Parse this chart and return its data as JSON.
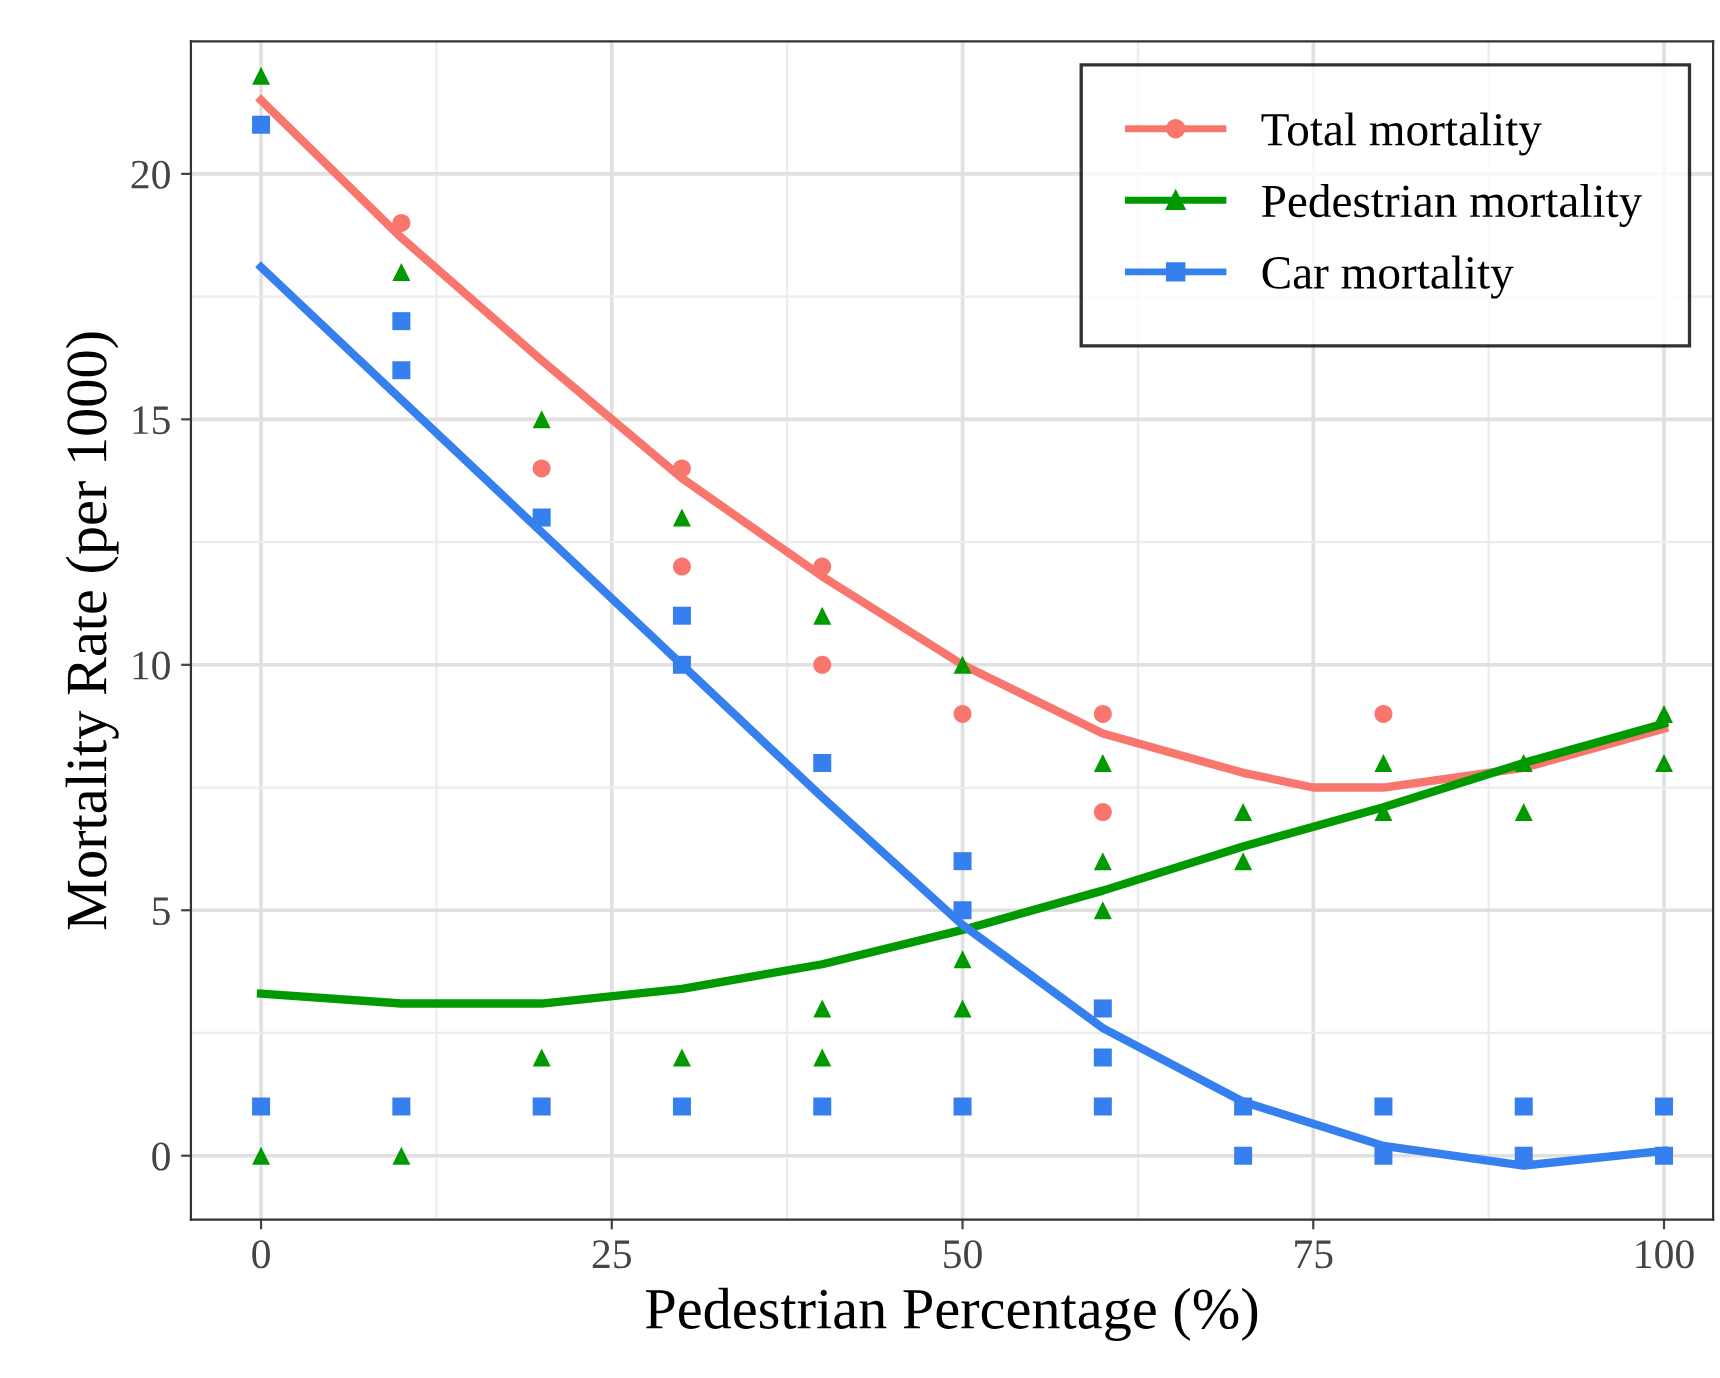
{
  "chart_data": {
    "type": "scatter",
    "xlabel": "Pedestrian Percentage (%)",
    "ylabel": "Mortality Rate (per 1000)",
    "xlim": [
      -5,
      103.5
    ],
    "ylim": [
      -1.3,
      22.7
    ],
    "xticks": [
      0,
      25,
      50,
      75,
      100
    ],
    "yticks": [
      0,
      5,
      10,
      15,
      20
    ],
    "grid": true,
    "legend": "top right",
    "series": [
      {
        "name": "Total mortality",
        "marker": "circle",
        "color": "#f8766d",
        "x": [
          10,
          20,
          30,
          30,
          40,
          40,
          50,
          60,
          60,
          80
        ],
        "values": [
          19,
          14,
          14,
          12,
          12,
          10,
          9,
          9,
          7,
          9
        ]
      },
      {
        "name": "Pedestrian mortality",
        "marker": "triangle",
        "color": "#009a00",
        "x": [
          0,
          0,
          10,
          10,
          20,
          20,
          30,
          30,
          40,
          40,
          40,
          50,
          50,
          50,
          60,
          60,
          60,
          70,
          70,
          80,
          80,
          90,
          90,
          100,
          100
        ],
        "values": [
          22,
          0,
          18,
          0,
          15,
          2,
          13,
          2,
          11,
          3,
          2,
          10,
          4,
          3,
          8,
          6,
          5,
          7,
          6,
          8,
          7,
          8,
          7,
          9,
          8
        ]
      },
      {
        "name": "Car mortality",
        "marker": "square",
        "color": "#3580ee",
        "x": [
          0,
          0,
          10,
          10,
          10,
          20,
          20,
          30,
          30,
          30,
          40,
          40,
          50,
          50,
          50,
          60,
          60,
          60,
          70,
          70,
          80,
          80,
          90,
          90,
          100,
          100
        ],
        "values": [
          21,
          1,
          17,
          16,
          1,
          13,
          1,
          11,
          10,
          1,
          8,
          1,
          6,
          5,
          1,
          3,
          2,
          1,
          1,
          0,
          1,
          0,
          1,
          0,
          1,
          0
        ]
      },
      {
        "type": "line",
        "color": "#f8766d",
        "x": [
          0,
          10,
          20,
          30,
          40,
          50,
          60,
          70,
          75,
          80,
          90,
          100
        ],
        "values": [
          21.5,
          18.7,
          16.2,
          13.8,
          11.8,
          10.0,
          8.6,
          7.8,
          7.5,
          7.5,
          7.9,
          8.7
        ]
      },
      {
        "type": "line",
        "color": "#009a00",
        "x": [
          0,
          10,
          20,
          30,
          40,
          50,
          60,
          70,
          80,
          90,
          100
        ],
        "values": [
          3.3,
          3.1,
          3.1,
          3.4,
          3.9,
          4.6,
          5.4,
          6.3,
          7.1,
          8.0,
          8.8
        ]
      },
      {
        "type": "line",
        "color": "#3580ee",
        "x": [
          0,
          10,
          20,
          30,
          40,
          50,
          60,
          70,
          80,
          90,
          100
        ],
        "values": [
          18.1,
          15.4,
          12.7,
          10.0,
          7.3,
          4.7,
          2.6,
          1.1,
          0.2,
          -0.2,
          0.1
        ]
      }
    ]
  }
}
